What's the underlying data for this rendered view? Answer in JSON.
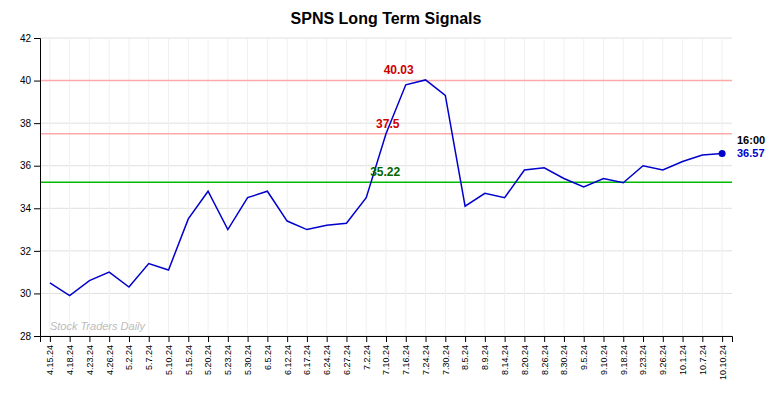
{
  "chart_data": {
    "type": "line",
    "title": "SPNS Long Term Signals",
    "color": "#0000cc",
    "grid": true,
    "ylim": [
      28,
      42
    ],
    "yticks": [
      28,
      30,
      32,
      34,
      36,
      38,
      40,
      42
    ],
    "categories": [
      "4.15.24",
      "4.18.24",
      "4.23.24",
      "4.26.24",
      "5.2.24",
      "5.7.24",
      "5.10.24",
      "5.15.24",
      "5.20.24",
      "5.23.24",
      "5.30.24",
      "6.5.24",
      "6.12.24",
      "6.17.24",
      "6.24.24",
      "6.27.24",
      "7.2.24",
      "7.10.24",
      "7.16.24",
      "7.24.24",
      "7.30.24",
      "8.5.24",
      "8.9.24",
      "8.14.24",
      "8.20.24",
      "8.26.24",
      "8.30.24",
      "9.5.24",
      "9.10.24",
      "9.18.24",
      "9.23.24",
      "9.26.24",
      "10.1.24",
      "10.7.24",
      "10.10.24"
    ],
    "values": [
      30.5,
      29.9,
      30.6,
      31.0,
      30.3,
      31.4,
      31.1,
      33.5,
      34.8,
      33.0,
      34.5,
      34.8,
      33.4,
      33.0,
      33.2,
      33.3,
      34.5,
      37.5,
      39.8,
      40.03,
      39.3,
      34.1,
      34.7,
      34.5,
      35.8,
      35.9,
      35.4,
      35.0,
      35.4,
      35.2,
      36.0,
      35.8,
      36.2,
      36.5,
      36.57
    ],
    "hlines": [
      {
        "value": 35.22,
        "color": "#00bb00"
      },
      {
        "value": 37.5,
        "color": "#ffaaaa"
      },
      {
        "value": 40.0,
        "color": "#ffaaaa"
      }
    ],
    "annotations": [
      {
        "text": "40.03",
        "x": "7.24.24",
        "y": 40.03,
        "color": "#cc0000"
      },
      {
        "text": "37.5",
        "x": "7.10.24",
        "y": 37.5,
        "color": "#cc0000"
      },
      {
        "text": "35.22",
        "x": "7.2.24",
        "y": 35.22,
        "color": "#006600"
      }
    ],
    "end_labels": [
      {
        "text": "16:00",
        "color": "#000000"
      },
      {
        "text": "36.57",
        "value": 36.57,
        "color": "#0000cc"
      }
    ],
    "watermark": {
      "text": "Stock Traders Daily",
      "color": "#bbbbbb"
    }
  }
}
